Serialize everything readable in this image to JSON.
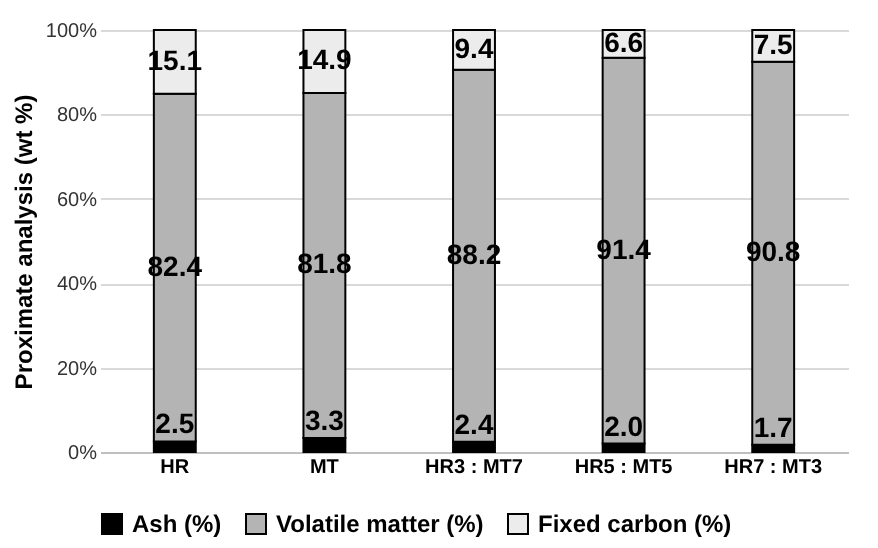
{
  "chart_data": {
    "type": "bar",
    "stacked": true,
    "ylabel": "Proximate analysis (wt %)",
    "categories": [
      "HR",
      "MT",
      "HR3 : MT7",
      "HR5 : MT5",
      "HR7 : MT3"
    ],
    "series": [
      {
        "name": "Ash (%)",
        "color": "#000000",
        "values": [
          2.5,
          3.3,
          2.4,
          2.0,
          1.7
        ],
        "value_labels": [
          "2.5",
          "3.3",
          "2.4",
          "2.0",
          "1.7"
        ]
      },
      {
        "name": "Volatile matter (%)",
        "color": "#b4b4b4",
        "values": [
          82.4,
          81.8,
          88.2,
          91.4,
          90.8
        ],
        "value_labels": [
          "82.4",
          "81.8",
          "88.2",
          "91.4",
          "90.8"
        ]
      },
      {
        "name": "Fixed carbon (%)",
        "color": "#ececec",
        "values": [
          15.1,
          14.9,
          9.4,
          6.6,
          7.5
        ],
        "value_labels": [
          "15.1",
          "14.9",
          "9.4",
          "6.6",
          "7.5"
        ]
      }
    ],
    "ylim": [
      0,
      100
    ],
    "yticks": [
      {
        "value": 0,
        "label": "0%"
      },
      {
        "value": 20,
        "label": "20%"
      },
      {
        "value": 40,
        "label": "40%"
      },
      {
        "value": 60,
        "label": "60%"
      },
      {
        "value": 80,
        "label": "80%"
      },
      {
        "value": 100,
        "label": "100%"
      }
    ],
    "grid": "y",
    "legend": "bottom"
  }
}
